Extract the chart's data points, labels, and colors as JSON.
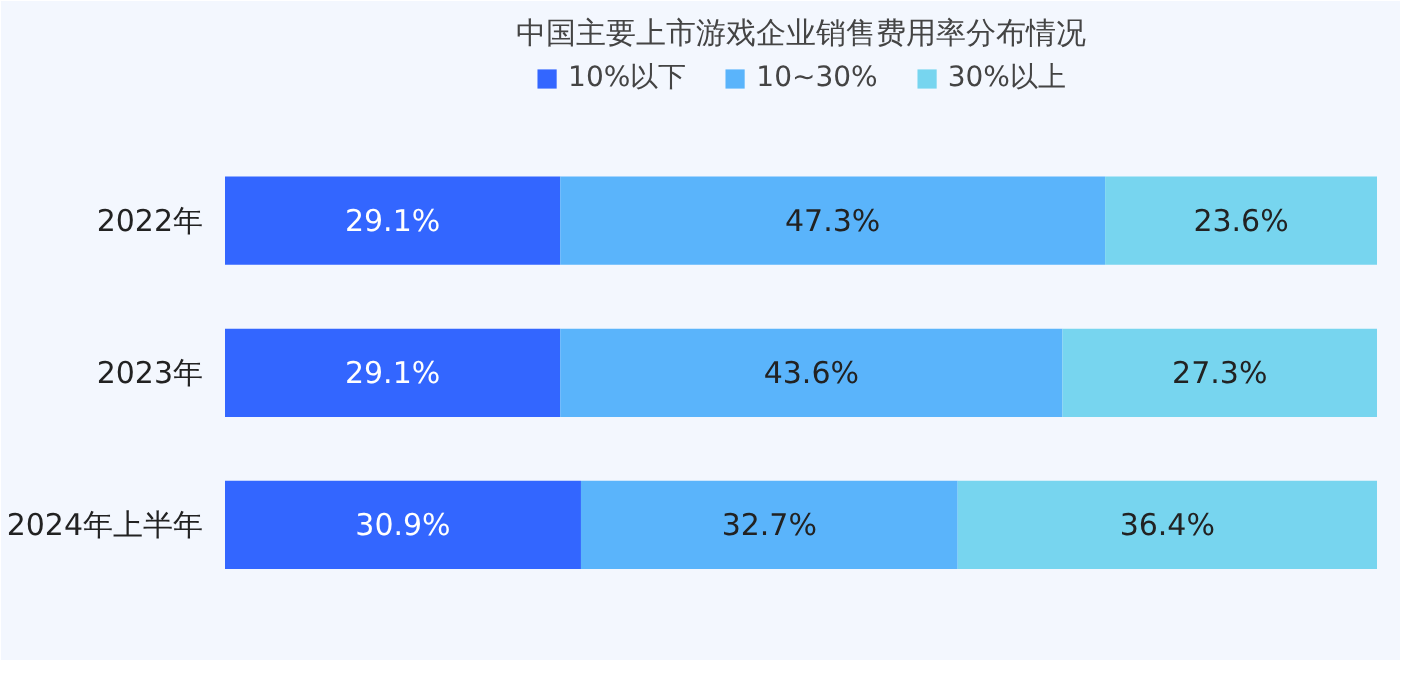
{
  "chart_data": {
    "type": "bar",
    "orientation": "horizontal",
    "stacked": true,
    "title": "中国主要上市游戏企业销售费用率分布情况",
    "categories": [
      "2022年",
      "2023年",
      "2024年上半年"
    ],
    "series": [
      {
        "name": "10%以下",
        "color": "#3366ff",
        "values": [
          29.1,
          29.1,
          30.9
        ],
        "value_labels": [
          "29.1%",
          "29.1%",
          "30.9%"
        ]
      },
      {
        "name": "10~30%",
        "color": "#5ab4fb",
        "values": [
          47.3,
          43.6,
          32.7
        ],
        "value_labels": [
          "47.3%",
          "43.6%",
          "32.7%"
        ]
      },
      {
        "name": "30%以上",
        "color": "#77d5ef",
        "values": [
          23.6,
          27.3,
          36.4
        ],
        "value_labels": [
          "23.6%",
          "27.3%",
          "36.4%"
        ]
      }
    ],
    "legend": "top"
  }
}
